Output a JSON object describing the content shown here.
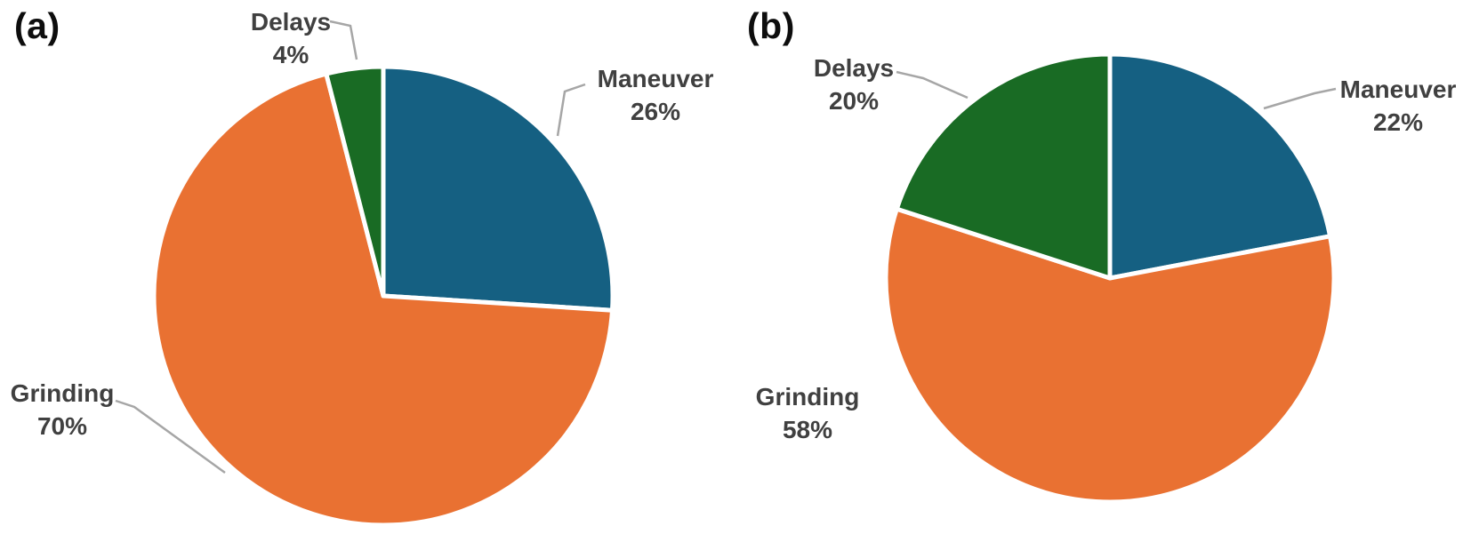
{
  "figure": {
    "background_color": "#FFFFFF",
    "styles": {
      "label_text_color": "#404040",
      "panel_tag_color": "#0D0D0D",
      "leader_line_color": "#A6A6A6",
      "slice_border_color": "#FFFFFF"
    }
  },
  "chart_data": [
    {
      "type": "pie",
      "title": "(a)",
      "labels": [
        "Maneuver",
        "Grinding",
        "Delays"
      ],
      "values": [
        26,
        70,
        4
      ],
      "value_labels": [
        "26%",
        "70%",
        "4%"
      ],
      "colors": [
        "#156082",
        "#E97132",
        "#196B24"
      ],
      "start_angle": "top",
      "direction": "clockwise",
      "legend": "none",
      "label_style": "outside labels with gray leader lines, category name above percent"
    },
    {
      "type": "pie",
      "title": "(b)",
      "labels": [
        "Maneuver",
        "Grinding",
        "Delays"
      ],
      "values": [
        22,
        58,
        20
      ],
      "value_labels": [
        "22%",
        "58%",
        "20%"
      ],
      "colors": [
        "#156082",
        "#E97132",
        "#196B24"
      ],
      "start_angle": "top",
      "direction": "clockwise",
      "legend": "none",
      "label_style": "outside labels, leader lines on Maneuver and Delays only"
    }
  ]
}
